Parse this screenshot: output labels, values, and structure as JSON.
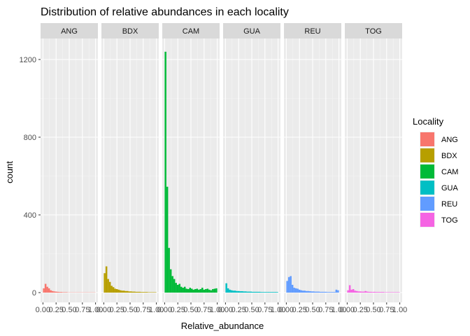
{
  "chart_data": {
    "type": "bar",
    "subtype": "faceted-histogram",
    "title": "Distribution of relative abundances in each locality",
    "xlabel": "Relative_abundance",
    "ylabel": "count",
    "xlim": [
      0,
      1
    ],
    "ylim": [
      0,
      1300
    ],
    "x_ticks": [
      0,
      0.25,
      0.5,
      0.75,
      1
    ],
    "x_tick_labels": [
      "0.00",
      "0.25",
      "0.50",
      "0.75",
      "1.00"
    ],
    "y_ticks": [
      0,
      400,
      800,
      1200
    ],
    "y_tick_labels": [
      "0",
      "400",
      "800",
      "1200"
    ],
    "grid": true,
    "legend": {
      "title": "Locality",
      "position": "right"
    },
    "bin_width": 0.0333,
    "series": [
      {
        "name": "ANG",
        "color": "#F8766D",
        "values": [
          22,
          45,
          30,
          22,
          12,
          8,
          6,
          5,
          4,
          3,
          3,
          2,
          2,
          2,
          1,
          1,
          1,
          1,
          1,
          1,
          1,
          1,
          1,
          1,
          1,
          1,
          1,
          1,
          1,
          1
        ]
      },
      {
        "name": "BDX",
        "color": "#B79F00",
        "values": [
          100,
          135,
          70,
          55,
          35,
          28,
          20,
          18,
          15,
          12,
          10,
          10,
          8,
          8,
          6,
          6,
          5,
          5,
          4,
          4,
          4,
          3,
          3,
          3,
          3,
          2,
          2,
          2,
          2,
          2
        ]
      },
      {
        "name": "CAM",
        "color": "#00BA38",
        "values": [
          1240,
          545,
          230,
          120,
          85,
          70,
          50,
          40,
          45,
          30,
          25,
          30,
          20,
          18,
          25,
          20,
          15,
          18,
          20,
          15,
          18,
          25,
          15,
          18,
          20,
          15,
          12,
          18,
          20,
          22
        ]
      },
      {
        "name": "GUA",
        "color": "#00BFC4",
        "values": [
          48,
          22,
          15,
          12,
          10,
          10,
          8,
          8,
          7,
          7,
          6,
          6,
          5,
          5,
          5,
          4,
          4,
          4,
          4,
          4,
          3,
          3,
          3,
          3,
          3,
          3,
          3,
          3,
          3,
          3
        ]
      },
      {
        "name": "REU",
        "color": "#619CFF",
        "values": [
          60,
          80,
          85,
          40,
          25,
          22,
          20,
          15,
          12,
          10,
          10,
          8,
          8,
          7,
          6,
          6,
          5,
          5,
          5,
          4,
          4,
          4,
          4,
          3,
          3,
          3,
          3,
          3,
          15,
          12
        ]
      },
      {
        "name": "TOG",
        "color": "#F564E3",
        "values": [
          12,
          38,
          15,
          18,
          10,
          8,
          6,
          6,
          5,
          5,
          8,
          5,
          4,
          4,
          3,
          4,
          3,
          3,
          3,
          3,
          3,
          2,
          2,
          2,
          2,
          2,
          2,
          2,
          2,
          2
        ]
      }
    ]
  }
}
